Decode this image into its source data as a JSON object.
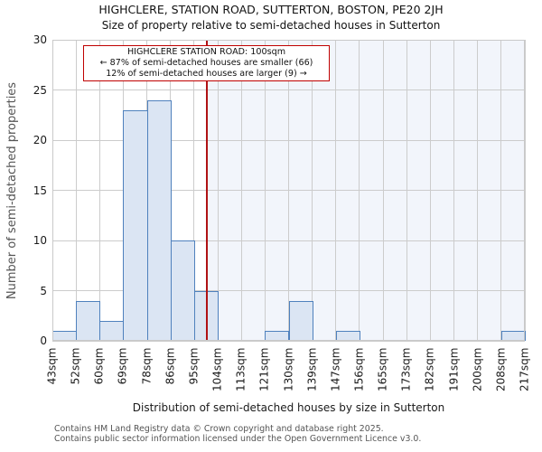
{
  "header": {
    "title": "HIGHCLERE, STATION ROAD, SUTTERTON, BOSTON, PE20 2JH",
    "subtitle": "Size of property relative to semi-detached houses in Sutterton"
  },
  "annotation": {
    "line1": "HIGHCLERE STATION ROAD: 100sqm",
    "line2": "← 87% of semi-detached houses are smaller (66)",
    "line3": "12% of semi-detached houses are larger (9) →"
  },
  "y_axis": {
    "label": "Number of semi-detached properties",
    "ticks": [
      0,
      5,
      10,
      15,
      20,
      25,
      30
    ]
  },
  "x_axis": {
    "label": "Distribution of semi-detached houses by size in Sutterton",
    "tick_labels": [
      "43sqm",
      "52sqm",
      "60sqm",
      "69sqm",
      "78sqm",
      "86sqm",
      "95sqm",
      "104sqm",
      "113sqm",
      "121sqm",
      "130sqm",
      "139sqm",
      "147sqm",
      "156sqm",
      "165sqm",
      "173sqm",
      "182sqm",
      "191sqm",
      "200sqm",
      "208sqm",
      "217sqm"
    ]
  },
  "footer": {
    "line1": "Contains HM Land Registry data © Crown copyright and database right 2025.",
    "line2": "Contains public sector information licensed under the Open Government Licence v3.0."
  },
  "colors": {
    "bar_fill": "#dbe5f3",
    "bar_edge": "#4f81bd",
    "marker_line": "#b01214",
    "annotation_border": "#c00000",
    "shaded_region": "#f2f5fb",
    "gridline": "#cccccc"
  },
  "chart_data": {
    "type": "bar",
    "title": "Size of property relative to semi-detached houses in Sutterton",
    "xlabel": "Distribution of semi-detached houses by size in Sutterton",
    "ylabel": "Number of semi-detached properties",
    "ylim": [
      0,
      30
    ],
    "grid": true,
    "bin_edges_sqm": [
      43,
      52,
      60,
      69,
      78,
      86,
      95,
      104,
      113,
      121,
      130,
      139,
      147,
      156,
      165,
      173,
      182,
      191,
      200,
      208,
      217
    ],
    "counts": [
      1,
      4,
      2,
      23,
      24,
      10,
      5,
      0,
      0,
      1,
      4,
      0,
      1,
      0,
      0,
      0,
      0,
      0,
      0,
      1
    ],
    "marker_value_sqm": 100,
    "marker_label": "HIGHCLERE STATION ROAD: 100sqm",
    "pct_smaller": 87,
    "count_smaller": 66,
    "pct_larger": 12,
    "count_larger": 9
  }
}
